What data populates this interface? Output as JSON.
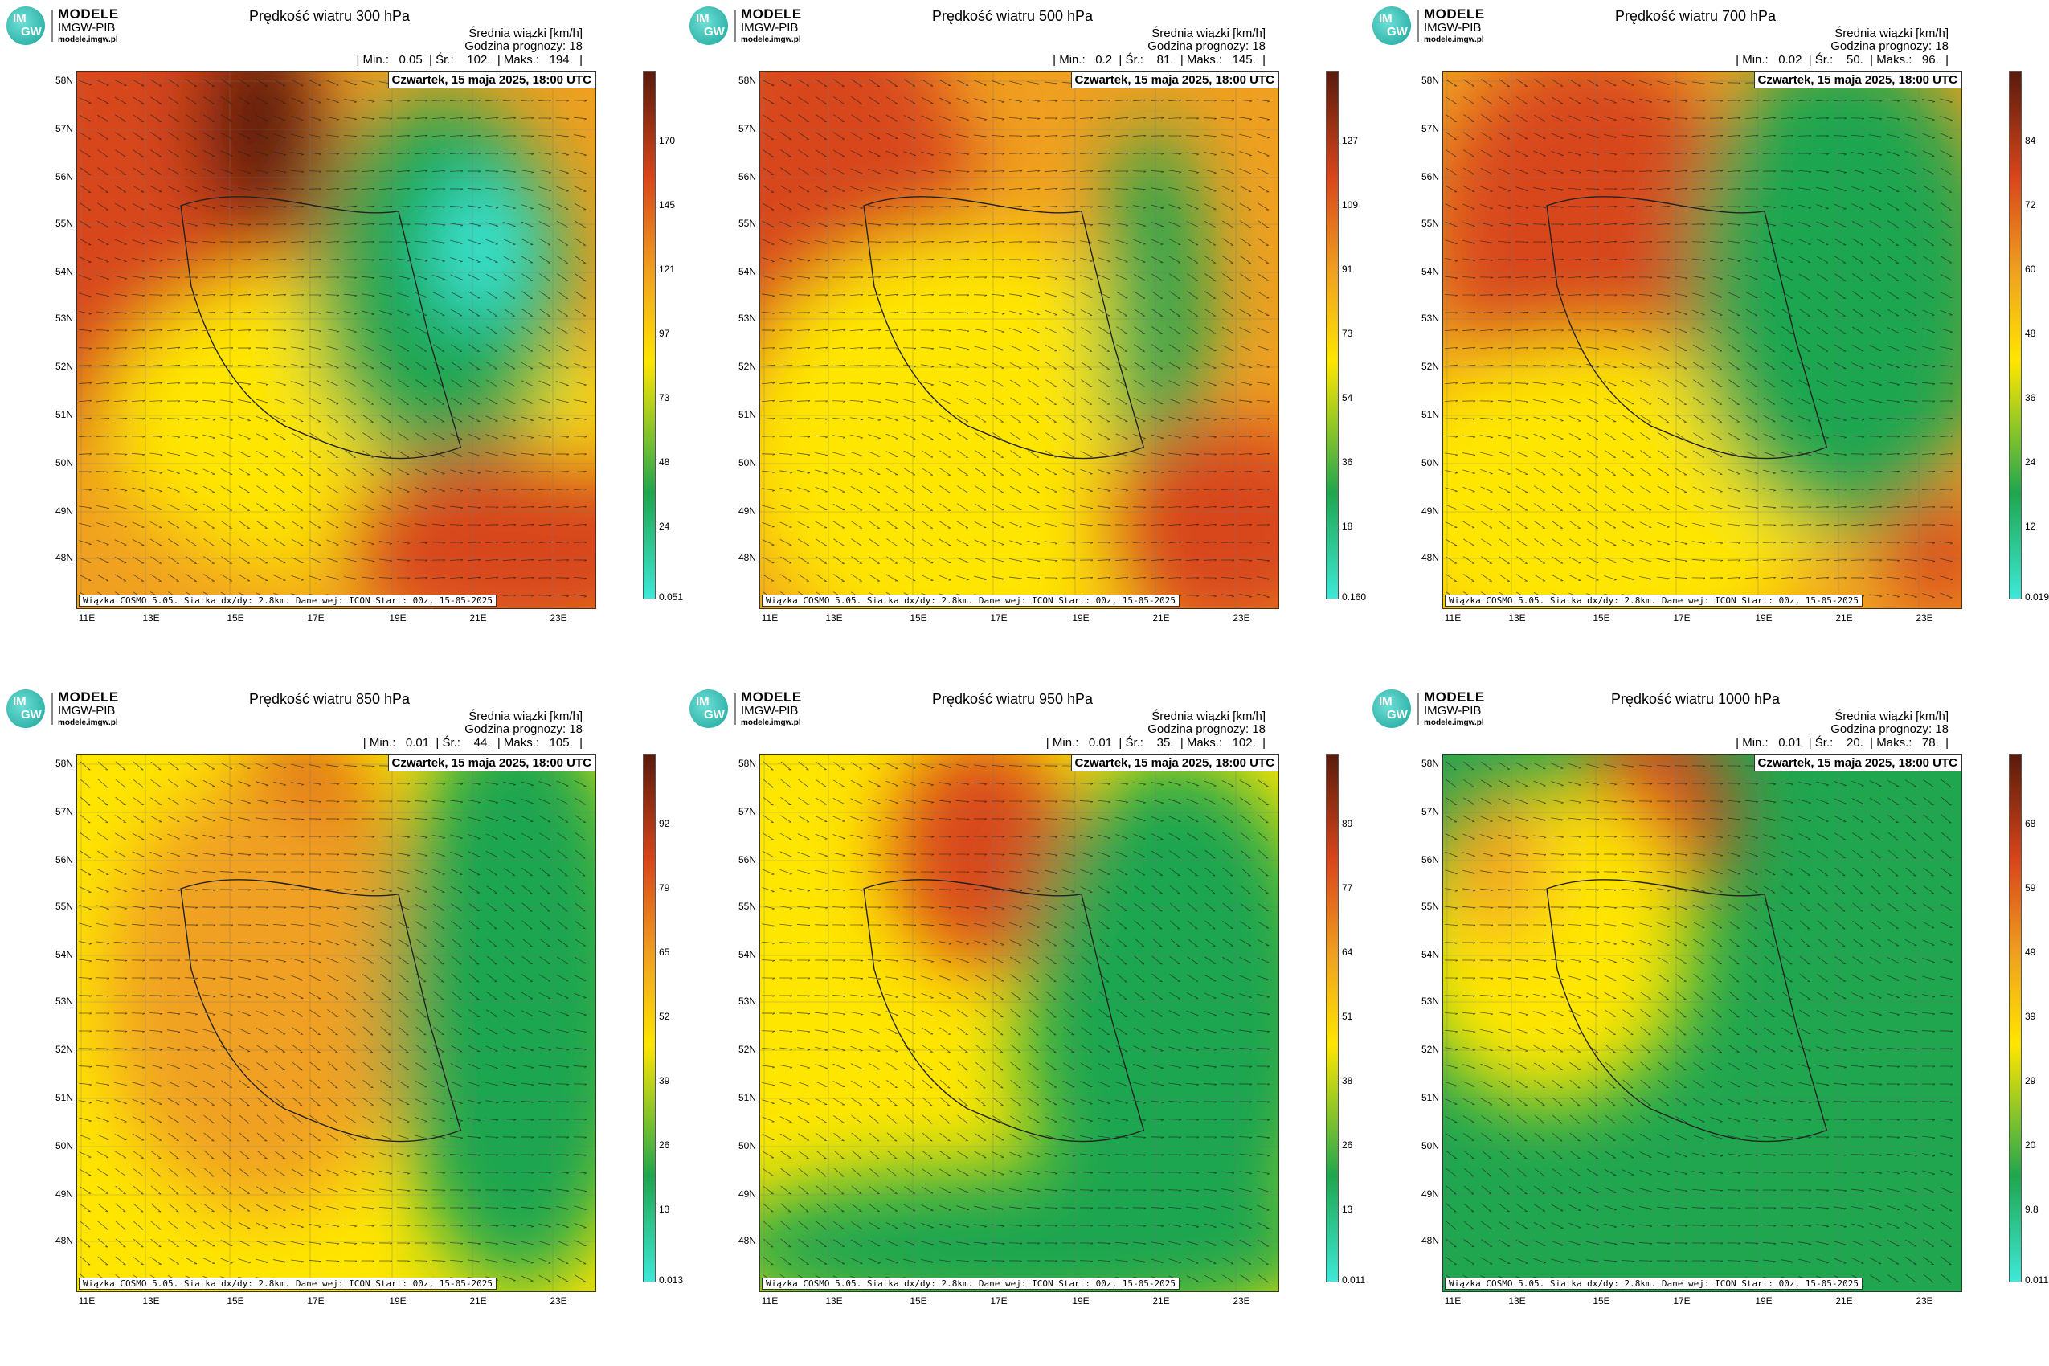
{
  "logo": {
    "line1": "MODELE",
    "line2": "IMGW-PIB",
    "line3": "modele.imgw.pl",
    "badge_top": "IM",
    "badge_bottom": "GW"
  },
  "common": {
    "info_line1": "Średnia wiązki [km/h]",
    "info_line2": "Godzina prognozy: 18",
    "date": "Czwartek, 15 maja 2025, 18:00 UTC",
    "footer": "Wiązka COSMO 5.05. Siatka dx/dy: 2.8km. Dane wej: ICON Start: 00z, 15-05-2025",
    "lat_labels": [
      "58N",
      "57N",
      "56N",
      "55N",
      "54N",
      "53N",
      "52N",
      "51N",
      "50N",
      "49N",
      "48N"
    ],
    "lon_labels": [
      "11E",
      "13E",
      "15E",
      "17E",
      "19E",
      "21E",
      "23E"
    ]
  },
  "panels": [
    {
      "title": "Prędkość wiatru 300 hPa",
      "stats": "| Min.:   0.05  | Śr.:    102.  | Maks.:   194.  |",
      "cbar_labels": [
        "170",
        "145",
        "121",
        "97",
        "73",
        "48",
        "24",
        "0.051"
      ],
      "cbar_max": 194
    },
    {
      "title": "Prędkość wiatru 500 hPa",
      "stats": "| Min.:   0.2  | Śr.:    81.  | Maks.:   145.  |",
      "cbar_labels": [
        "127",
        "109",
        "91",
        "73",
        "54",
        "36",
        "18",
        "0.160"
      ],
      "cbar_max": 145
    },
    {
      "title": "Prędkość wiatru 700 hPa",
      "stats": "| Min.:   0.02  | Śr.:    50.  | Maks.:   96.  |",
      "cbar_labels": [
        "84",
        "72",
        "60",
        "48",
        "36",
        "24",
        "12",
        "0.019"
      ],
      "cbar_max": 96
    },
    {
      "title": "Prędkość wiatru 850 hPa",
      "stats": "| Min.:   0.01  | Śr.:    44.  | Maks.:   105.  |",
      "cbar_labels": [
        "92",
        "79",
        "65",
        "52",
        "39",
        "26",
        "13",
        "0.013"
      ],
      "cbar_max": 105
    },
    {
      "title": "Prędkość wiatru 950 hPa",
      "stats": "| Min.:   0.01  | Śr.:    35.  | Maks.:   102.  |",
      "cbar_labels": [
        "89",
        "77",
        "64",
        "51",
        "38",
        "26",
        "13",
        "0.011"
      ],
      "cbar_max": 102
    },
    {
      "title": "Prędkość wiatru 1000 hPa",
      "stats": "| Min.:   0.01  | Śr.:    20.  | Maks.:   78.  |",
      "cbar_labels": [
        "68",
        "59",
        "49",
        "39",
        "29",
        "20",
        "9.8",
        "0.011"
      ],
      "cbar_max": 78
    }
  ],
  "colors": {
    "low": "#3ee8d8",
    "green": "#1fa64f",
    "yellow": "#ffe600",
    "orange": "#f0a020",
    "red": "#d8461a",
    "dark": "#5a1a0c"
  }
}
